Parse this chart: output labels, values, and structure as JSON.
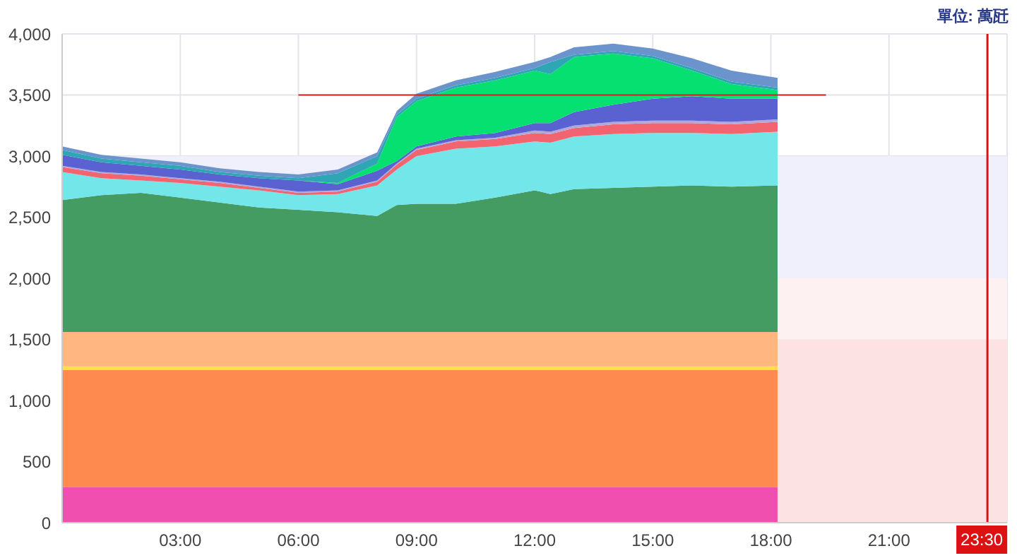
{
  "chart_data": {
    "type": "area",
    "stacked": true,
    "grid": true,
    "x": [
      0,
      1,
      2,
      3,
      4,
      5,
      6,
      7,
      8,
      8.5,
      9,
      10,
      11,
      12,
      12.4,
      13,
      14,
      15,
      16,
      17,
      18.17
    ],
    "xlim": [
      0,
      24
    ],
    "xticks": [
      {
        "value": 3,
        "label": "03:00"
      },
      {
        "value": 6,
        "label": "06:00"
      },
      {
        "value": 9,
        "label": "09:00"
      },
      {
        "value": 12,
        "label": "12:00"
      },
      {
        "value": 15,
        "label": "15:00"
      },
      {
        "value": 18,
        "label": "18:00"
      },
      {
        "value": 21,
        "label": "21:00"
      }
    ],
    "ylim": [
      0,
      4000
    ],
    "yticks": [
      0,
      500,
      {
        "value": 1000,
        "label": "1,000"
      },
      {
        "value": 1500,
        "label": "1,500"
      },
      {
        "value": 2000,
        "label": "2,000"
      },
      {
        "value": 2500,
        "label": "2,500"
      },
      {
        "value": 3000,
        "label": "3,000"
      },
      {
        "value": 3500,
        "label": "3,500"
      },
      {
        "value": 4000,
        "label": "4,000"
      }
    ],
    "annotations": [
      "單位: 萬瓩"
    ],
    "bands": [
      {
        "axis": "y",
        "from": 0,
        "to": 1500,
        "color": "#fde2e4"
      },
      {
        "axis": "y",
        "from": 1500,
        "to": 2000,
        "color": "#fdf1f2"
      },
      {
        "axis": "y",
        "from": 2000,
        "to": 3000,
        "color": "#eff0fb"
      }
    ],
    "ref_lines": [
      {
        "axis": "x",
        "value": 23.5,
        "label": "23:30",
        "color": "#dd1111"
      }
    ],
    "series": [
      {
        "color": "#f04fb0",
        "values": [
          290,
          290,
          290,
          290,
          290,
          290,
          290,
          290,
          290,
          290,
          290,
          290,
          290,
          290,
          290,
          290,
          290,
          290,
          290,
          290,
          290
        ]
      },
      {
        "color": "#ff8a4f",
        "values": [
          960,
          960,
          960,
          960,
          960,
          960,
          960,
          960,
          960,
          960,
          960,
          960,
          960,
          960,
          960,
          960,
          960,
          960,
          960,
          960,
          960
        ]
      },
      {
        "color": "#ffe040",
        "values": [
          30,
          30,
          30,
          30,
          30,
          30,
          30,
          30,
          30,
          30,
          30,
          30,
          30,
          30,
          30,
          30,
          30,
          30,
          30,
          30,
          30
        ]
      },
      {
        "color": "#ffb680",
        "values": [
          280,
          280,
          280,
          280,
          280,
          280,
          280,
          280,
          280,
          280,
          280,
          280,
          280,
          280,
          280,
          280,
          280,
          280,
          280,
          280,
          280
        ]
      },
      {
        "color": "#449c62",
        "values": [
          1080,
          1120,
          1140,
          1100,
          1060,
          1020,
          1000,
          980,
          950,
          1040,
          1050,
          1050,
          1100,
          1160,
          1130,
          1170,
          1180,
          1190,
          1200,
          1190,
          1200
        ]
      },
      {
        "color": "#72e6e8",
        "values": [
          230,
          140,
          100,
          120,
          130,
          140,
          120,
          150,
          250,
          290,
          390,
          450,
          420,
          400,
          420,
          430,
          440,
          440,
          430,
          430,
          440
        ]
      },
      {
        "color": "#f26470",
        "values": [
          40,
          40,
          40,
          30,
          30,
          20,
          20,
          20,
          30,
          40,
          50,
          60,
          60,
          70,
          70,
          70,
          80,
          80,
          80,
          80,
          80
        ]
      },
      {
        "color": "#b0a8d8",
        "values": [
          10,
          10,
          10,
          10,
          10,
          10,
          10,
          10,
          10,
          10,
          10,
          10,
          10,
          20,
          20,
          20,
          20,
          20,
          20,
          20,
          20
        ]
      },
      {
        "color": "#5a62d2",
        "values": [
          90,
          80,
          70,
          70,
          60,
          70,
          90,
          50,
          80,
          20,
          20,
          30,
          40,
          60,
          70,
          110,
          140,
          180,
          200,
          190,
          170
        ]
      },
      {
        "color": "#05e070",
        "values": [
          0,
          0,
          0,
          0,
          0,
          0,
          0,
          10,
          60,
          360,
          370,
          400,
          430,
          430,
          400,
          450,
          420,
          330,
          210,
          120,
          70
        ]
      },
      {
        "color": "#2ea6b6",
        "values": [
          40,
          30,
          30,
          30,
          20,
          20,
          20,
          80,
          60,
          20,
          20,
          20,
          20,
          20,
          100,
          20,
          20,
          20,
          20,
          20,
          20
        ]
      },
      {
        "color": "#6c94cc",
        "values": [
          30,
          30,
          30,
          30,
          30,
          30,
          30,
          30,
          30,
          30,
          40,
          40,
          50,
          50,
          40,
          60,
          60,
          60,
          80,
          90,
          80
        ]
      },
      {
        "type": "line",
        "x": [
          6,
          19.4
        ],
        "color": "#cc2222",
        "values": [
          3500,
          3500
        ]
      }
    ]
  }
}
